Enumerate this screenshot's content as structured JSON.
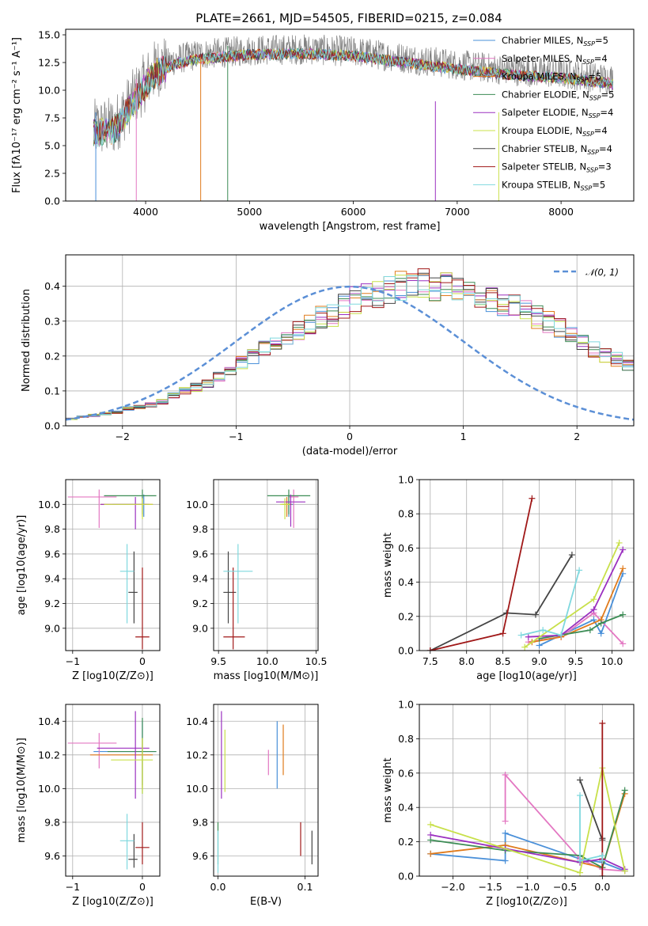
{
  "figure": {
    "title": "PLATE=2661, MJD=54505, FIBERID=0215, z=0.084"
  },
  "models": [
    {
      "name": "Chabrier MILES, N_SSP=5",
      "color": "#4a90d9"
    },
    {
      "name": "Salpeter MILES, N_SSP=4",
      "color": "#e377c2"
    },
    {
      "name": "Kroupa MILES, N_SSP=5",
      "color": "#e07b1c"
    },
    {
      "name": "Chabrier ELODIE, N_SSP=5",
      "color": "#3c8c55"
    },
    {
      "name": "Salpeter ELODIE, N_SSP=4",
      "color": "#9b30c0"
    },
    {
      "name": "Kroupa ELODIE, N_SSP=4",
      "color": "#c8e04a"
    },
    {
      "name": "Chabrier STELIB, N_SSP=4",
      "color": "#444444"
    },
    {
      "name": "Salpeter STELIB, N_SSP=3",
      "color": "#a01818"
    },
    {
      "name": "Kroupa STELIB, N_SSP=5",
      "color": "#7fd8de"
    }
  ],
  "legend_labels": [
    {
      "pre": "Chabrier MILES, N",
      "sub": "SSP",
      "post": "=5"
    },
    {
      "pre": "Salpeter MILES, N",
      "sub": "SSP",
      "post": "=4"
    },
    {
      "pre": "Kroupa MILES, N",
      "sub": "SSP",
      "post": "=5"
    },
    {
      "pre": "Chabrier ELODIE, N",
      "sub": "SSP",
      "post": "=5"
    },
    {
      "pre": "Salpeter ELODIE, N",
      "sub": "SSP",
      "post": "=4"
    },
    {
      "pre": "Kroupa ELODIE, N",
      "sub": "SSP",
      "post": "=4"
    },
    {
      "pre": "Chabrier STELIB, N",
      "sub": "SSP",
      "post": "=4"
    },
    {
      "pre": "Salpeter STELIB, N",
      "sub": "SSP",
      "post": "=3"
    },
    {
      "pre": "Kroupa STELIB, N",
      "sub": "SSP",
      "post": "=5"
    }
  ],
  "chart_data": [
    {
      "id": "spectrum",
      "type": "line",
      "title": "PLATE=2661, MJD=54505, FIBERID=0215, z=0.084",
      "xlabel": "wavelength [Angstrom, rest frame]",
      "ylabel": "Flux [fλ10⁻¹⁷ erg cm⁻² s⁻¹ A⁻¹]",
      "xlim": [
        3230,
        8700
      ],
      "ylim": [
        0,
        15.5
      ],
      "xticks": [
        4000,
        5000,
        6000,
        7000,
        8000
      ],
      "yticks": [
        0.0,
        2.5,
        5.0,
        7.5,
        10.0,
        12.5,
        15.0
      ],
      "observed_color": "#808080",
      "continuum": {
        "x": [
          3500,
          3700,
          3900,
          4000,
          4100,
          4300,
          4500,
          5000,
          5500,
          6000,
          6500,
          7000,
          7500,
          8000,
          8500
        ],
        "y": [
          6.5,
          6.8,
          9.5,
          10.8,
          12.0,
          12.8,
          13.2,
          13.6,
          13.7,
          13.5,
          12.9,
          12.3,
          11.8,
          11.5,
          11.0
        ]
      },
      "legend_position": "upper right",
      "grid": false
    },
    {
      "id": "residuals",
      "type": "step",
      "xlabel": "(data-model)/error",
      "ylabel": "Normed distribution",
      "xlim": [
        -2.5,
        2.5
      ],
      "ylim": [
        0,
        0.49
      ],
      "xticks": [
        -2,
        -1,
        0,
        1,
        2
      ],
      "yticks": [
        0.0,
        0.1,
        0.2,
        0.3,
        0.4
      ],
      "bin_width": 0.1,
      "reference_curve": {
        "label": "N(0,1)",
        "color": "#5b8fd6",
        "mean": 0,
        "sigma": 1
      },
      "histogram": [
        0.02,
        0.025,
        0.03,
        0.035,
        0.04,
        0.05,
        0.055,
        0.06,
        0.07,
        0.085,
        0.1,
        0.11,
        0.12,
        0.14,
        0.16,
        0.18,
        0.2,
        0.22,
        0.24,
        0.25,
        0.27,
        0.29,
        0.31,
        0.32,
        0.34,
        0.36,
        0.37,
        0.38,
        0.39,
        0.4,
        0.41,
        0.41,
        0.4,
        0.4,
        0.39,
        0.38,
        0.37,
        0.36,
        0.35,
        0.34,
        0.33,
        0.31,
        0.3,
        0.28,
        0.26,
        0.24,
        0.22,
        0.2,
        0.19,
        0.17,
        0.15,
        0.13,
        0.12,
        0.1,
        0.09,
        0.08,
        0.07,
        0.06,
        0.05,
        0.045,
        0.04,
        0.035,
        0.03,
        0.025,
        0.02
      ],
      "grid": true,
      "legend_position": "upper right"
    },
    {
      "id": "age-vs-Z",
      "type": "errorbar",
      "xlabel": "Z [log10(Z/Z⊙)]",
      "ylabel": "age [log10(age/yr)]",
      "xlim": [
        -1.1,
        0.25
      ],
      "ylim": [
        8.82,
        10.2
      ],
      "xticks": [
        -1,
        0
      ],
      "yticks": [
        9.0,
        9.2,
        9.4,
        9.6,
        9.8,
        10.0
      ],
      "points": [
        {
          "model": 0,
          "x": 0.02,
          "y": 10.0,
          "xerr": [
            0.45,
            0.05
          ],
          "yerr": [
            0.1,
            0.08
          ]
        },
        {
          "model": 1,
          "x": -0.62,
          "y": 10.06,
          "xerr": [
            0.45,
            0.25
          ],
          "yerr": [
            0.25,
            0.06
          ]
        },
        {
          "model": 2,
          "x": 0.0,
          "y": 10.0,
          "xerr": [
            0.6,
            0.15
          ],
          "yerr": [
            0.1,
            0.06
          ]
        },
        {
          "model": 3,
          "x": 0.0,
          "y": 10.07,
          "xerr": [
            0.55,
            0.2
          ],
          "yerr": [
            0.15,
            0.05
          ]
        },
        {
          "model": 4,
          "x": -0.1,
          "y": 10.0,
          "xerr": [
            0.5,
            0.2
          ],
          "yerr": [
            0.2,
            0.06
          ]
        },
        {
          "model": 5,
          "x": 0.0,
          "y": 10.0,
          "xerr": [
            0.55,
            0.15
          ],
          "yerr": [
            0.12,
            0.05
          ]
        },
        {
          "model": 6,
          "x": -0.12,
          "y": 9.29,
          "xerr": [
            0.08,
            0.05
          ],
          "yerr": [
            0.25,
            0.33
          ]
        },
        {
          "model": 7,
          "x": 0.0,
          "y": 8.93,
          "xerr": [
            0.1,
            0.1
          ],
          "yerr": [
            0.1,
            0.56
          ]
        },
        {
          "model": 8,
          "x": -0.22,
          "y": 9.46,
          "xerr": [
            0.1,
            0.1
          ],
          "yerr": [
            0.42,
            0.22
          ]
        }
      ],
      "grid": true
    },
    {
      "id": "age-vs-mass",
      "type": "errorbar",
      "xlabel": "mass [log10(M/M⊙)]",
      "ylabel": "",
      "xlim": [
        9.45,
        10.52
      ],
      "ylim": [
        8.82,
        10.2
      ],
      "xticks": [
        9.5,
        10.0,
        10.5
      ],
      "yticks": [
        9.0,
        9.2,
        9.4,
        9.6,
        9.8,
        10.0
      ],
      "points": [
        {
          "model": 0,
          "x": 10.22,
          "y": 10.0,
          "xerr": [
            0.03,
            0.05
          ],
          "yerr": [
            0.1,
            0.08
          ]
        },
        {
          "model": 1,
          "x": 10.27,
          "y": 10.06,
          "xerr": [
            0.05,
            0.05
          ],
          "yerr": [
            0.25,
            0.06
          ]
        },
        {
          "model": 2,
          "x": 10.2,
          "y": 10.0,
          "xerr": [
            0.05,
            0.05
          ],
          "yerr": [
            0.1,
            0.06
          ]
        },
        {
          "model": 3,
          "x": 10.22,
          "y": 10.07,
          "xerr": [
            0.22,
            0.22
          ],
          "yerr": [
            0.15,
            0.05
          ]
        },
        {
          "model": 4,
          "x": 10.24,
          "y": 10.02,
          "xerr": [
            0.15,
            0.15
          ],
          "yerr": [
            0.2,
            0.06
          ]
        },
        {
          "model": 5,
          "x": 10.18,
          "y": 10.0,
          "xerr": [
            0.05,
            0.05
          ],
          "yerr": [
            0.12,
            0.05
          ]
        },
        {
          "model": 6,
          "x": 9.6,
          "y": 9.29,
          "xerr": [
            0.05,
            0.08
          ],
          "yerr": [
            0.25,
            0.33
          ]
        },
        {
          "model": 7,
          "x": 9.65,
          "y": 8.93,
          "xerr": [
            0.1,
            0.12
          ],
          "yerr": [
            0.1,
            0.56
          ]
        },
        {
          "model": 8,
          "x": 9.7,
          "y": 9.46,
          "xerr": [
            0.15,
            0.15
          ],
          "yerr": [
            0.42,
            0.22
          ]
        }
      ],
      "grid": true
    },
    {
      "id": "weight-vs-age",
      "type": "line",
      "xlabel": "age [log10(age/yr)]",
      "ylabel": "mass weight",
      "xlim": [
        7.35,
        10.3
      ],
      "ylim": [
        0,
        1.0
      ],
      "xticks": [
        7.5,
        8.0,
        8.5,
        9.0,
        9.5,
        10.0
      ],
      "yticks": [
        0.0,
        0.2,
        0.4,
        0.6,
        0.8,
        1.0
      ],
      "series": [
        {
          "model": 0,
          "x": [
            9.0,
            9.75,
            9.85,
            10.15
          ],
          "y": [
            0.03,
            0.18,
            0.1,
            0.45
          ]
        },
        {
          "model": 1,
          "x": [
            8.85,
            9.3,
            9.75,
            10.15
          ],
          "y": [
            0.05,
            0.08,
            0.22,
            0.04
          ]
        },
        {
          "model": 2,
          "x": [
            8.9,
            9.3,
            9.85,
            10.15
          ],
          "y": [
            0.05,
            0.08,
            0.18,
            0.48
          ]
        },
        {
          "model": 3,
          "x": [
            9.0,
            9.7,
            9.85,
            10.15
          ],
          "y": [
            0.07,
            0.12,
            0.16,
            0.21
          ]
        },
        {
          "model": 4,
          "x": [
            8.85,
            9.3,
            9.75,
            10.15
          ],
          "y": [
            0.08,
            0.09,
            0.24,
            0.59
          ]
        },
        {
          "model": 5,
          "x": [
            8.8,
            9.75,
            10.1
          ],
          "y": [
            0.02,
            0.3,
            0.63
          ]
        },
        {
          "model": 6,
          "x": [
            7.5,
            8.55,
            8.95,
            9.45
          ],
          "y": [
            0.0,
            0.22,
            0.21,
            0.56
          ]
        },
        {
          "model": 7,
          "x": [
            7.5,
            8.5,
            8.9
          ],
          "y": [
            0.0,
            0.1,
            0.89
          ]
        },
        {
          "model": 8,
          "x": [
            8.75,
            9.05,
            9.3,
            9.55
          ],
          "y": [
            0.09,
            0.12,
            0.09,
            0.47
          ]
        }
      ],
      "grid": true
    },
    {
      "id": "mass-vs-Z",
      "type": "errorbar",
      "xlabel": "Z [log10(Z/Z⊙)]",
      "ylabel": "mass [log10(M/M⊙)]",
      "xlim": [
        -1.1,
        0.25
      ],
      "ylim": [
        9.48,
        10.5
      ],
      "xticks": [
        -1,
        0
      ],
      "yticks": [
        9.6,
        9.8,
        10.0,
        10.2,
        10.4
      ],
      "points": [
        {
          "model": 0,
          "x": 0.0,
          "y": 10.22,
          "xerr": [
            0.7,
            0.2
          ],
          "yerr": [
            0.2,
            0.18
          ]
        },
        {
          "model": 1,
          "x": -0.62,
          "y": 10.27,
          "xerr": [
            0.45,
            0.25
          ],
          "yerr": [
            0.15,
            0.06
          ]
        },
        {
          "model": 2,
          "x": 0.0,
          "y": 10.2,
          "xerr": [
            0.75,
            0.15
          ],
          "yerr": [
            0.2,
            0.1
          ]
        },
        {
          "model": 3,
          "x": 0.0,
          "y": 10.22,
          "xerr": [
            0.5,
            0.2
          ],
          "yerr": [
            0.25,
            0.2
          ]
        },
        {
          "model": 4,
          "x": -0.1,
          "y": 10.24,
          "xerr": [
            0.55,
            0.2
          ],
          "yerr": [
            0.3,
            0.22
          ]
        },
        {
          "model": 5,
          "x": 0.0,
          "y": 10.17,
          "xerr": [
            0.45,
            0.15
          ],
          "yerr": [
            0.2,
            0.13
          ]
        },
        {
          "model": 6,
          "x": -0.12,
          "y": 9.58,
          "xerr": [
            0.08,
            0.05
          ],
          "yerr": [
            0.05,
            0.15
          ]
        },
        {
          "model": 7,
          "x": 0.0,
          "y": 9.65,
          "xerr": [
            0.1,
            0.1
          ],
          "yerr": [
            0.1,
            0.15
          ]
        },
        {
          "model": 8,
          "x": -0.22,
          "y": 9.69,
          "xerr": [
            0.1,
            0.1
          ],
          "yerr": [
            0.17,
            0.16
          ]
        }
      ],
      "grid": true
    },
    {
      "id": "mass-vs-ebv",
      "type": "errorbar",
      "xlabel": "E(B-V)",
      "ylabel": "",
      "xlim": [
        -0.005,
        0.115
      ],
      "ylim": [
        9.48,
        10.5
      ],
      "xticks": [
        0.0,
        0.1
      ],
      "yticks": [
        9.6,
        9.8,
        10.0,
        10.2,
        10.4
      ],
      "points": [
        {
          "model": 0,
          "x": 0.068,
          "y": 10.1,
          "xerr": [
            0,
            0
          ],
          "yerr": [
            0.1,
            0.3
          ]
        },
        {
          "model": 1,
          "x": 0.058,
          "y": 10.15,
          "xerr": [
            0,
            0
          ],
          "yerr": [
            0.07,
            0.08
          ]
        },
        {
          "model": 2,
          "x": 0.075,
          "y": 10.15,
          "xerr": [
            0,
            0
          ],
          "yerr": [
            0.07,
            0.23
          ]
        },
        {
          "model": 3,
          "x": 0.0,
          "y": 9.8,
          "xerr": [
            0,
            0
          ],
          "yerr": [
            0.25,
            0.0
          ]
        },
        {
          "model": 4,
          "x": 0.004,
          "y": 10.2,
          "xerr": [
            0,
            0
          ],
          "yerr": [
            0.26,
            0.26
          ]
        },
        {
          "model": 5,
          "x": 0.008,
          "y": 10.15,
          "xerr": [
            0,
            0
          ],
          "yerr": [
            0.17,
            0.2
          ]
        },
        {
          "model": 6,
          "x": 0.108,
          "y": 9.65,
          "xerr": [
            0,
            0
          ],
          "yerr": [
            0.1,
            0.1
          ]
        },
        {
          "model": 7,
          "x": 0.095,
          "y": 9.7,
          "xerr": [
            0,
            0
          ],
          "yerr": [
            0.1,
            0.1
          ]
        },
        {
          "model": 8,
          "x": 0.0,
          "y": 9.75,
          "xerr": [
            0,
            0
          ],
          "yerr": [
            0.25,
            0.0
          ]
        }
      ],
      "grid": true
    },
    {
      "id": "weight-vs-Z",
      "type": "line",
      "xlabel": "Z [log10(Z/Z⊙)]",
      "ylabel": "mass weight",
      "xlim": [
        -2.45,
        0.42
      ],
      "ylim": [
        0,
        1.0
      ],
      "xticks": [
        -2.0,
        -1.5,
        -1.0,
        -0.5,
        0.0
      ],
      "yticks": [
        0.0,
        0.2,
        0.4,
        0.6,
        0.8,
        1.0
      ],
      "series": [
        {
          "model": 0,
          "x": [
            -2.3,
            -1.3,
            -1.3,
            -0.3,
            0.0,
            0.3
          ],
          "y": [
            0.13,
            0.09,
            0.25,
            0.1,
            0.08,
            0.03
          ]
        },
        {
          "model": 1,
          "x": [
            -1.3,
            -1.3,
            -0.3,
            0.0,
            0.3
          ],
          "y": [
            0.32,
            0.59,
            0.1,
            0.04,
            0.03
          ]
        },
        {
          "model": 2,
          "x": [
            -2.3,
            -1.3,
            -0.3,
            0.0,
            0.3
          ],
          "y": [
            0.13,
            0.18,
            0.08,
            0.05,
            0.48
          ]
        },
        {
          "model": 3,
          "x": [
            -2.3,
            -1.3,
            -0.3,
            0.0,
            0.3
          ],
          "y": [
            0.21,
            0.15,
            0.12,
            0.05,
            0.5
          ]
        },
        {
          "model": 4,
          "x": [
            -2.3,
            -1.3,
            -0.3,
            0.0,
            0.3
          ],
          "y": [
            0.24,
            0.16,
            0.08,
            0.1,
            0.04
          ]
        },
        {
          "model": 5,
          "x": [
            -2.3,
            -0.3,
            0.0,
            0.3
          ],
          "y": [
            0.3,
            0.02,
            0.63,
            0.03
          ]
        },
        {
          "model": 6,
          "x": [
            -0.3,
            0.0,
            0.0
          ],
          "y": [
            0.56,
            0.21,
            0.22
          ]
        },
        {
          "model": 7,
          "x": [
            0.0,
            0.0,
            0.0
          ],
          "y": [
            0.0,
            0.1,
            0.89
          ]
        },
        {
          "model": 8,
          "x": [
            -0.3,
            -0.3,
            0.0,
            0.0
          ],
          "y": [
            0.47,
            0.09,
            0.12,
            0.09
          ]
        }
      ],
      "grid": true
    }
  ]
}
